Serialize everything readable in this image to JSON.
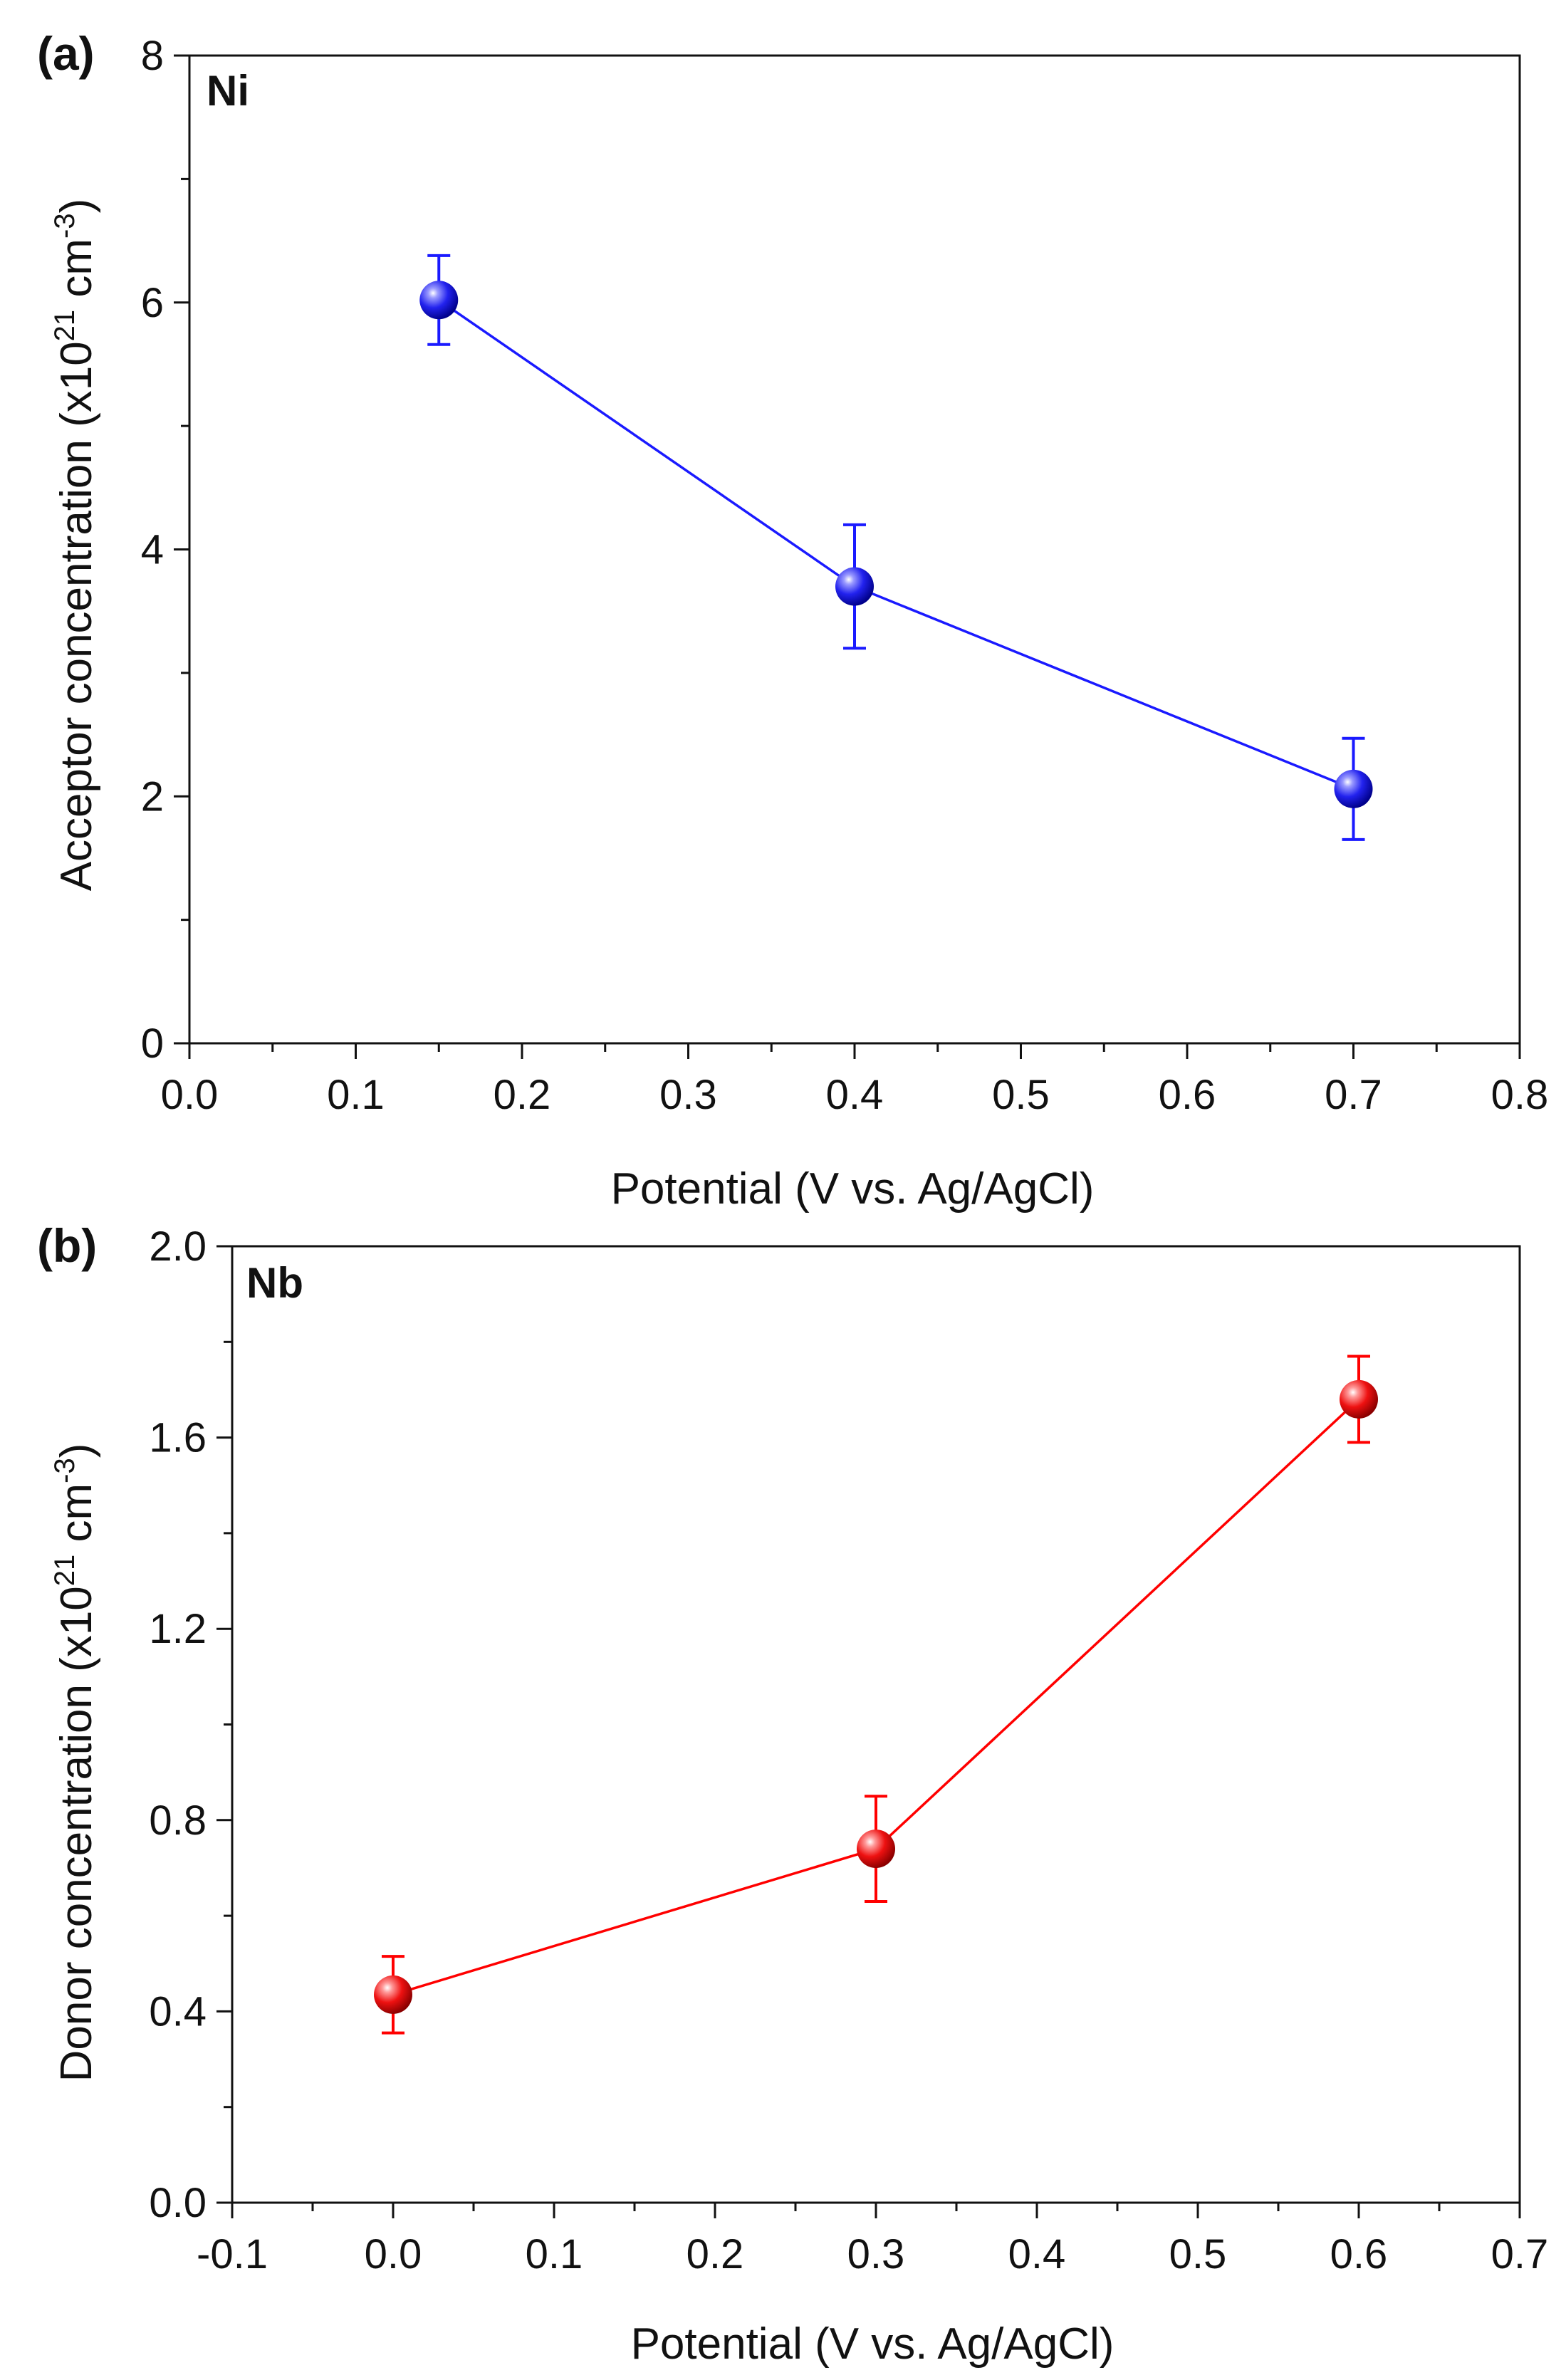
{
  "chart_data": [
    {
      "type": "scatter",
      "panel_label": "(a)",
      "tag": "Ni",
      "xlabel": "Potential (V vs. Ag/AgCl)",
      "ylabel": {
        "text": "Acceptor concentration (x10",
        "exp1": "21",
        "unit": " cm",
        "exp2": "-3",
        "close": ")"
      },
      "xlim": [
        0.0,
        0.8
      ],
      "ylim": [
        0,
        8
      ],
      "xticks": [
        0.0,
        0.1,
        0.2,
        0.3,
        0.4,
        0.5,
        0.6,
        0.7,
        0.8
      ],
      "yticks": [
        0,
        2,
        4,
        6,
        8
      ],
      "xtick_labels": [
        "0.0",
        "0.1",
        "0.2",
        "0.3",
        "0.4",
        "0.5",
        "0.6",
        "0.7",
        "0.8"
      ],
      "ytick_labels": [
        "0",
        "2",
        "4",
        "6",
        "8"
      ],
      "x_decimals": 1,
      "y_decimals": 0,
      "color": "#1a1aff",
      "series": [
        {
          "name": "Ni",
          "x": [
            0.15,
            0.4,
            0.7
          ],
          "y": [
            6.02,
            3.7,
            2.06
          ],
          "err": [
            0.36,
            0.5,
            0.41
          ]
        }
      ]
    },
    {
      "type": "scatter",
      "panel_label": "(b)",
      "tag": "Nb",
      "xlabel": "Potential (V vs. Ag/AgCl)",
      "ylabel": {
        "text": "Donor concentration (x10",
        "exp1": "21",
        "unit": " cm",
        "exp2": "-3",
        "close": ")"
      },
      "xlim": [
        -0.1,
        0.7
      ],
      "ylim": [
        0.0,
        2.0
      ],
      "xticks": [
        -0.1,
        0.0,
        0.1,
        0.2,
        0.3,
        0.4,
        0.5,
        0.6,
        0.7
      ],
      "yticks": [
        0.0,
        0.4,
        0.8,
        1.2,
        1.6,
        2.0
      ],
      "xtick_labels": [
        "-0.1",
        "0.0",
        "0.1",
        "0.2",
        "0.3",
        "0.4",
        "0.5",
        "0.6",
        "0.7"
      ],
      "ytick_labels": [
        "0.0",
        "0.4",
        "0.8",
        "1.2",
        "1.6",
        "2.0"
      ],
      "x_decimals": 1,
      "y_decimals": 1,
      "color": "#ff0000",
      "series": [
        {
          "name": "Nb",
          "x": [
            0.0,
            0.3,
            0.6
          ],
          "y": [
            0.435,
            0.74,
            1.68
          ],
          "err": [
            0.08,
            0.11,
            0.09
          ]
        }
      ]
    }
  ]
}
